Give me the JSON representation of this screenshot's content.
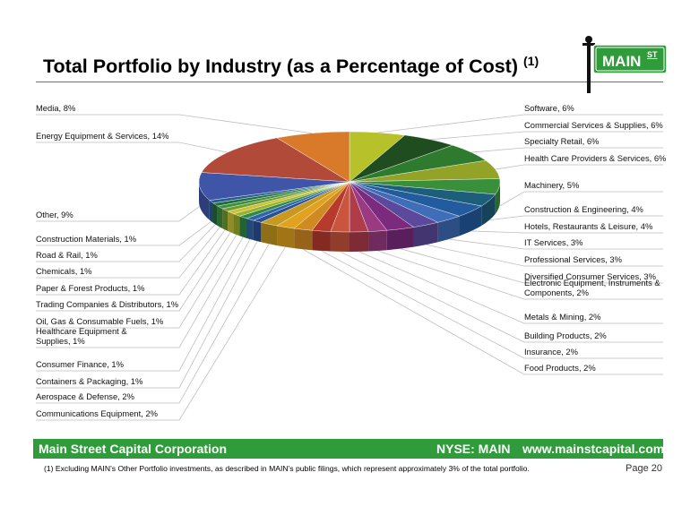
{
  "title": "Total Portfolio by Industry (as a Percentage of Cost)",
  "title_note": "(1)",
  "logo": {
    "text": "MAIN",
    "sup": "ST"
  },
  "footer": {
    "company": "Main Street Capital Corporation",
    "exchange": "NYSE: MAIN",
    "website": "www.mainstcapital.com"
  },
  "footnote": "(1) Excluding MAIN’s Other Portfolio investments, as described in MAIN’s public filings, which represent approximately 3% of the total portfolio.",
  "page": "Page 20",
  "colors": {
    "brand_green": "#2f9b3a"
  },
  "chart_data": {
    "type": "pie",
    "style": "3d",
    "title": "Total Portfolio by Industry (as a Percentage of Cost)",
    "slices": [
      {
        "label": "Software, 6%",
        "value": 6,
        "color": "#b7c22a"
      },
      {
        "label": "Commercial Services & Supplies, 6%",
        "value": 6,
        "color": "#1f4d1f"
      },
      {
        "label": "Specialty Retail, 6%",
        "value": 6,
        "color": "#2e7a2e"
      },
      {
        "label": "Health Care Providers & Services, 6%",
        "value": 6,
        "color": "#93a327"
      },
      {
        "label": "Machinery, 5%",
        "value": 5,
        "color": "#3a8f3a"
      },
      {
        "label": "Construction & Engineering, 4%",
        "value": 4,
        "color": "#1d5f7a"
      },
      {
        "label": "Hotels, Restaurants & Leisure, 4%",
        "value": 4,
        "color": "#235c9e"
      },
      {
        "label": "IT Services, 3%",
        "value": 3,
        "color": "#3f6db8"
      },
      {
        "label": "Professional Services, 3%",
        "value": 3,
        "color": "#5b4a9b"
      },
      {
        "label": "Diversified Consumer Services, 3%",
        "value": 3,
        "color": "#7b2a7e"
      },
      {
        "label": "Electronic Equipment, Instruments & Components, 2%",
        "value": 2,
        "color": "#9a3a82"
      },
      {
        "label": "Metals & Mining, 2%",
        "value": 2,
        "color": "#b03c4a"
      },
      {
        "label": "Building Products, 2%",
        "value": 2,
        "color": "#c8553c"
      },
      {
        "label": "Insurance, 2%",
        "value": 2,
        "color": "#b73a2c"
      },
      {
        "label": "Food Products, 2%",
        "value": 2,
        "color": "#d08a22"
      },
      {
        "label": "Communications Equipment, 2%",
        "value": 2,
        "color": "#e0a21f"
      },
      {
        "label": "Aerospace & Defense, 2%",
        "value": 2,
        "color": "#c79a1e"
      },
      {
        "label": "Containers & Packaging, 1%",
        "value": 1,
        "color": "#2a4f93"
      },
      {
        "label": "Consumer Finance, 1%",
        "value": 1,
        "color": "#2f65a8"
      },
      {
        "label": "Healthcare Equipment & Supplies, 1%",
        "value": 1,
        "color": "#2f8a4a"
      },
      {
        "label": "Oil, Gas & Consumable Fuels, 1%",
        "value": 1,
        "color": "#9cb02a"
      },
      {
        "label": "Trading Companies & Distributors, 1%",
        "value": 1,
        "color": "#c9c236"
      },
      {
        "label": "Paper & Forest Products, 1%",
        "value": 1,
        "color": "#6e9c2f"
      },
      {
        "label": "Chemicals, 1%",
        "value": 1,
        "color": "#3d8f3d"
      },
      {
        "label": "Road & Rail, 1%",
        "value": 1,
        "color": "#1e6e3a"
      },
      {
        "label": "Construction Materials, 1%",
        "value": 1,
        "color": "#2a5d8f"
      },
      {
        "label": "Other, 9%",
        "value": 9,
        "color": "#3f55a8"
      },
      {
        "label": "Energy Equipment & Services, 14%",
        "value": 14,
        "color": "#b24a3a"
      },
      {
        "label": "Media, 8%",
        "value": 8,
        "color": "#d97a2a"
      }
    ]
  }
}
